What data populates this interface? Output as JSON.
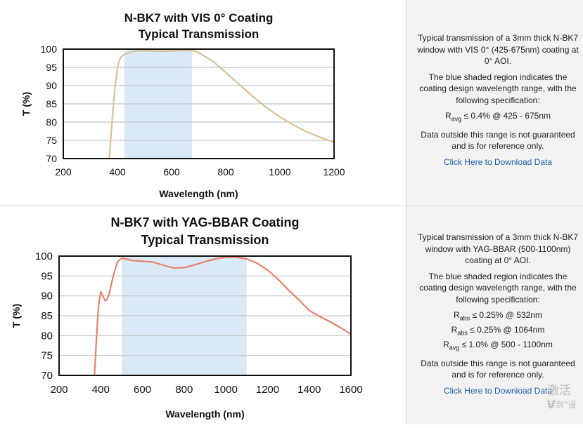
{
  "chart_data": [
    {
      "type": "line",
      "title": "N-BK7 with VIS 0° Coating",
      "subtitle": "Typical Transmission",
      "xlabel": "Wavelength (nm)",
      "ylabel": "T (%)",
      "xlim": [
        200,
        1200
      ],
      "ylim": [
        70,
        100
      ],
      "xticks": [
        200,
        400,
        600,
        800,
        1000,
        1200
      ],
      "yticks": [
        70,
        75,
        80,
        85,
        90,
        95,
        100
      ],
      "grid": true,
      "shaded_region": [
        425,
        675
      ],
      "shade_color": "#dbe8f5",
      "line_color": "#d8c196",
      "series": [
        {
          "x": [
            370,
            380,
            390,
            400,
            410,
            420,
            430,
            440,
            460,
            480,
            500,
            550,
            600,
            650,
            680,
            700,
            750,
            800,
            850,
            900,
            950,
            1000,
            1050,
            1100,
            1150,
            1200
          ],
          "values": [
            70,
            80,
            89,
            95,
            97.5,
            98.3,
            98.7,
            99,
            99.4,
            99.6,
            99.6,
            99.4,
            99.5,
            99.7,
            99.6,
            99,
            96.8,
            93.6,
            90.3,
            87,
            84,
            81.4,
            79.2,
            77.3,
            75.8,
            74.5
          ]
        }
      ]
    },
    {
      "type": "line",
      "title": "N-BK7 with YAG-BBAR Coating",
      "subtitle": "Typical Transmission",
      "xlabel": "Wavelength (nm)",
      "ylabel": "T (%)",
      "xlim": [
        200,
        1600
      ],
      "ylim": [
        70,
        100
      ],
      "xticks": [
        200,
        400,
        600,
        800,
        1000,
        1200,
        1400,
        1600
      ],
      "yticks": [
        70,
        75,
        80,
        85,
        90,
        95,
        100
      ],
      "grid": true,
      "shaded_region": [
        500,
        1100
      ],
      "shade_color": "#dbe8f5",
      "line_color": "#e8826b",
      "series": [
        {
          "x": [
            370,
            380,
            390,
            400,
            410,
            420,
            430,
            440,
            460,
            480,
            500,
            520,
            550,
            600,
            650,
            700,
            750,
            800,
            850,
            900,
            950,
            1000,
            1050,
            1100,
            1150,
            1200,
            1250,
            1300,
            1350,
            1400,
            1450,
            1500,
            1550,
            1600
          ],
          "values": [
            70,
            80,
            88,
            91,
            90,
            88.8,
            89,
            90.5,
            95,
            98.5,
            99.5,
            99.3,
            98.9,
            98.7,
            98.5,
            97.7,
            97,
            97.1,
            97.8,
            98.6,
            99.3,
            99.7,
            99.7,
            99.3,
            98.2,
            96.5,
            94.2,
            91.5,
            89,
            86.3,
            84.8,
            83.5,
            82,
            80.3
          ]
        }
      ]
    }
  ],
  "info": [
    {
      "desc": "Typical transmission of a 3mm thick N-BK7 window with VIS 0° (425-675nm) coating at 0° AOI.",
      "shade": "The blue shaded region indicates the coating design wavelength range, with the following specification:",
      "specs": [
        {
          "sym": "R",
          "sub": "avg",
          "val": " ≤ 0.4% @ 425 - 675nm"
        }
      ],
      "note": "Data outside this range is not guaranteed and is for reference only.",
      "link": "Click Here to Download Data"
    },
    {
      "desc": "Typical transmission of a 3mm thick N-BK7 window with YAG-BBAR (500-1100nm) coating at 0° AOI.",
      "shade": "The blue shaded region indicates the coating design wavelength range, with the following specification:",
      "specs": [
        {
          "sym": "R",
          "sub": "abs",
          "val": " ≤ 0.25% @ 532nm"
        },
        {
          "sym": "R",
          "sub": "abs",
          "val": " ≤ 0.25% @ 1064nm"
        },
        {
          "sym": "R",
          "sub": "avg",
          "val": " ≤ 1.0% @ 500 - 1100nm"
        }
      ],
      "note": "Data outside this range is not guaranteed and is for reference only.",
      "link": "Click Here to Download Data"
    }
  ],
  "watermark": {
    "line1": "激活 V",
    "line2": "转到\"设"
  }
}
